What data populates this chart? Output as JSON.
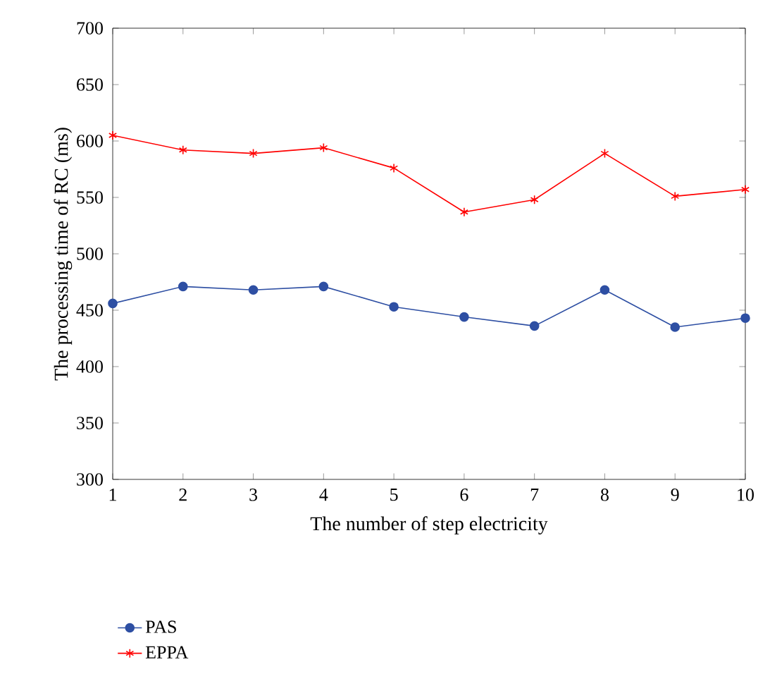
{
  "chart_data": {
    "type": "line",
    "xlabel": "The number of step electricity",
    "ylabel": "The processing time of RC (ms)",
    "x": [
      1,
      2,
      3,
      4,
      5,
      6,
      7,
      8,
      9,
      10
    ],
    "series": [
      {
        "name": "PAS",
        "color": "#2e4fa3",
        "marker": "circle",
        "values": [
          456,
          471,
          468,
          471,
          453,
          444,
          436,
          468,
          435,
          443
        ]
      },
      {
        "name": "EPPA",
        "color": "#ff0000",
        "marker": "cross",
        "values": [
          605,
          592,
          589,
          594,
          576,
          537,
          548,
          589,
          551,
          557
        ]
      }
    ],
    "xlim": [
      1,
      10
    ],
    "xticks": [
      1,
      2,
      3,
      4,
      5,
      6,
      7,
      8,
      9,
      10
    ],
    "ylim": [
      300,
      700
    ],
    "yticks": [
      300,
      350,
      400,
      450,
      500,
      550,
      600,
      650,
      700
    ],
    "grid": false,
    "legend": "bottom",
    "line_style": "solid"
  }
}
